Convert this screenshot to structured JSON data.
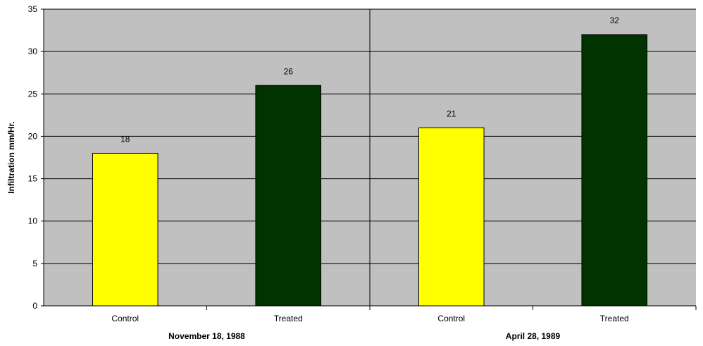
{
  "chart_data": {
    "type": "bar",
    "title": "",
    "ylabel": "Infiltration mm/Hr.",
    "xlabel": "",
    "ylim": [
      0,
      35
    ],
    "ytick_step": 5,
    "grid": true,
    "colors": {
      "plot_background": "#c0c0c0",
      "gridline": "#000000",
      "control": "#ffff00",
      "treated": "#003300"
    },
    "groups": [
      {
        "label": "November 18, 1988",
        "bars": [
          {
            "category": "Control",
            "value": 18,
            "color": "#ffff00"
          },
          {
            "category": "Treated",
            "value": 26,
            "color": "#003300"
          }
        ]
      },
      {
        "label": "April 28, 1989",
        "bars": [
          {
            "category": "Control",
            "value": 21,
            "color": "#ffff00"
          },
          {
            "category": "Treated",
            "value": 32,
            "color": "#003300"
          }
        ]
      }
    ]
  }
}
